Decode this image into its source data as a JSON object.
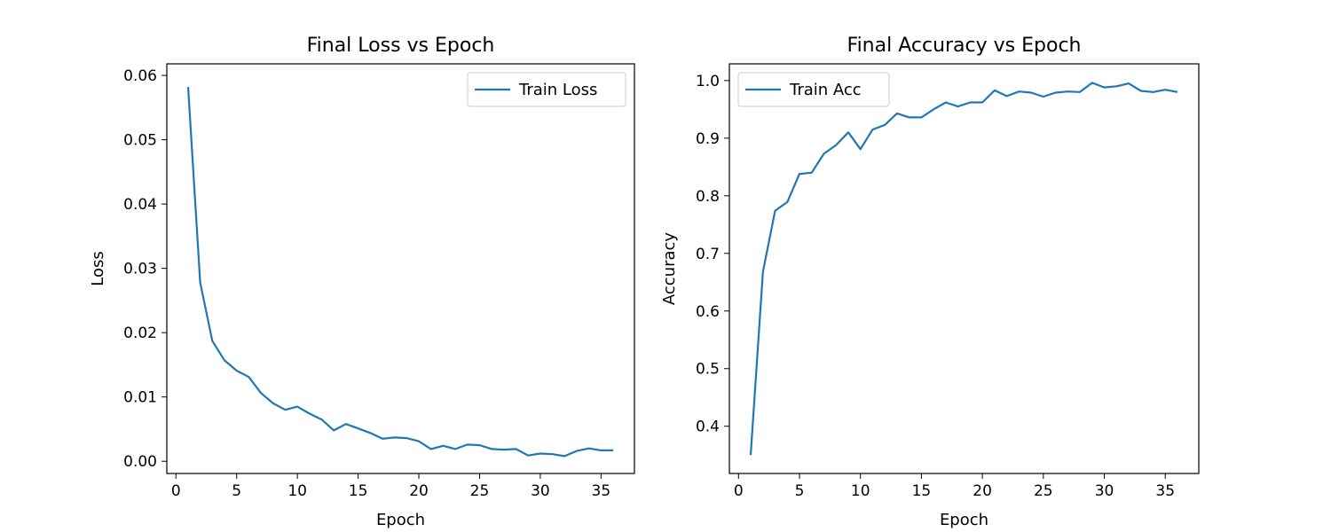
{
  "chart_data": [
    {
      "type": "line",
      "title": "Final Loss vs Epoch",
      "xlabel": "Epoch",
      "ylabel": "Loss",
      "xlim": [
        -0.75,
        37.75
      ],
      "ylim": [
        -0.0019,
        0.0618
      ],
      "xticks": [
        0,
        5,
        10,
        15,
        20,
        25,
        30,
        35
      ],
      "yticks": [
        0.0,
        0.01,
        0.02,
        0.03,
        0.04,
        0.05,
        0.06
      ],
      "ytick_labels": [
        "0.00",
        "0.01",
        "0.02",
        "0.03",
        "0.04",
        "0.05",
        "0.06"
      ],
      "legend": "upper right",
      "grid": false,
      "color": "#1f77b4",
      "series": [
        {
          "name": "Train Loss",
          "x": [
            1,
            2,
            3,
            4,
            5,
            6,
            7,
            8,
            9,
            10,
            11,
            12,
            13,
            14,
            15,
            16,
            17,
            18,
            19,
            20,
            21,
            22,
            23,
            24,
            25,
            26,
            27,
            28,
            29,
            30,
            31,
            32,
            33,
            34,
            35,
            36
          ],
          "y": [
            0.0582,
            0.0278,
            0.0187,
            0.0157,
            0.0141,
            0.0131,
            0.0106,
            0.009,
            0.008,
            0.0085,
            0.0074,
            0.0065,
            0.0048,
            0.0058,
            0.0051,
            0.0044,
            0.0035,
            0.0037,
            0.0036,
            0.0031,
            0.0019,
            0.0024,
            0.0019,
            0.0026,
            0.0025,
            0.0019,
            0.0018,
            0.0019,
            0.0009,
            0.0012,
            0.0011,
            0.0008,
            0.0016,
            0.002,
            0.0017,
            0.0017
          ]
        }
      ]
    },
    {
      "type": "line",
      "title": "Final Accuracy vs Epoch",
      "xlabel": "Epoch",
      "ylabel": "Accuracy",
      "xlim": [
        -0.75,
        37.75
      ],
      "ylim": [
        0.318,
        1.029
      ],
      "xticks": [
        0,
        5,
        10,
        15,
        20,
        25,
        30,
        35
      ],
      "yticks": [
        0.4,
        0.5,
        0.6,
        0.7,
        0.8,
        0.9,
        1.0
      ],
      "ytick_labels": [
        "0.4",
        "0.5",
        "0.6",
        "0.7",
        "0.8",
        "0.9",
        "1.0"
      ],
      "legend": "upper left",
      "grid": false,
      "color": "#1f77b4",
      "series": [
        {
          "name": "Train Acc",
          "x": [
            1,
            2,
            3,
            4,
            5,
            6,
            7,
            8,
            9,
            10,
            11,
            12,
            13,
            14,
            15,
            16,
            17,
            18,
            19,
            20,
            21,
            22,
            23,
            24,
            25,
            26,
            27,
            28,
            29,
            30,
            31,
            32,
            33,
            34,
            35,
            36
          ],
          "y": [
            0.35,
            0.668,
            0.774,
            0.789,
            0.838,
            0.84,
            0.873,
            0.888,
            0.91,
            0.881,
            0.915,
            0.923,
            0.943,
            0.936,
            0.936,
            0.95,
            0.962,
            0.955,
            0.962,
            0.962,
            0.983,
            0.973,
            0.981,
            0.979,
            0.972,
            0.979,
            0.981,
            0.98,
            0.996,
            0.988,
            0.99,
            0.995,
            0.982,
            0.98,
            0.984,
            0.98
          ]
        }
      ]
    }
  ]
}
